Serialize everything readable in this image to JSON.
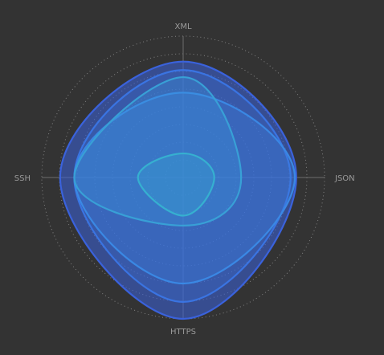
{
  "chart_data": {
    "type": "radar",
    "indicators": [
      "XML",
      "JSON",
      "HTTPS",
      "SSH"
    ],
    "max": 100,
    "rings": 8,
    "grid": true,
    "legend": "none",
    "colors": {
      "background": "#333333",
      "ring": "#9c9c9c",
      "axis": "#6d6d6d",
      "label": "#9a9a9a",
      "series_stroke": [
        "#3a62dc",
        "#3a74e2",
        "#3a88e4",
        "#38a0d6",
        "#36b0d0"
      ]
    },
    "series": [
      {
        "values": [
          82,
          80,
          100,
          87
        ]
      },
      {
        "values": [
          76,
          76,
          88,
          77
        ]
      },
      {
        "values": [
          60,
          79,
          75,
          77
        ]
      },
      {
        "values": [
          71,
          41,
          34,
          77
        ]
      },
      {
        "values": [
          17,
          22,
          27,
          32
        ]
      }
    ]
  }
}
